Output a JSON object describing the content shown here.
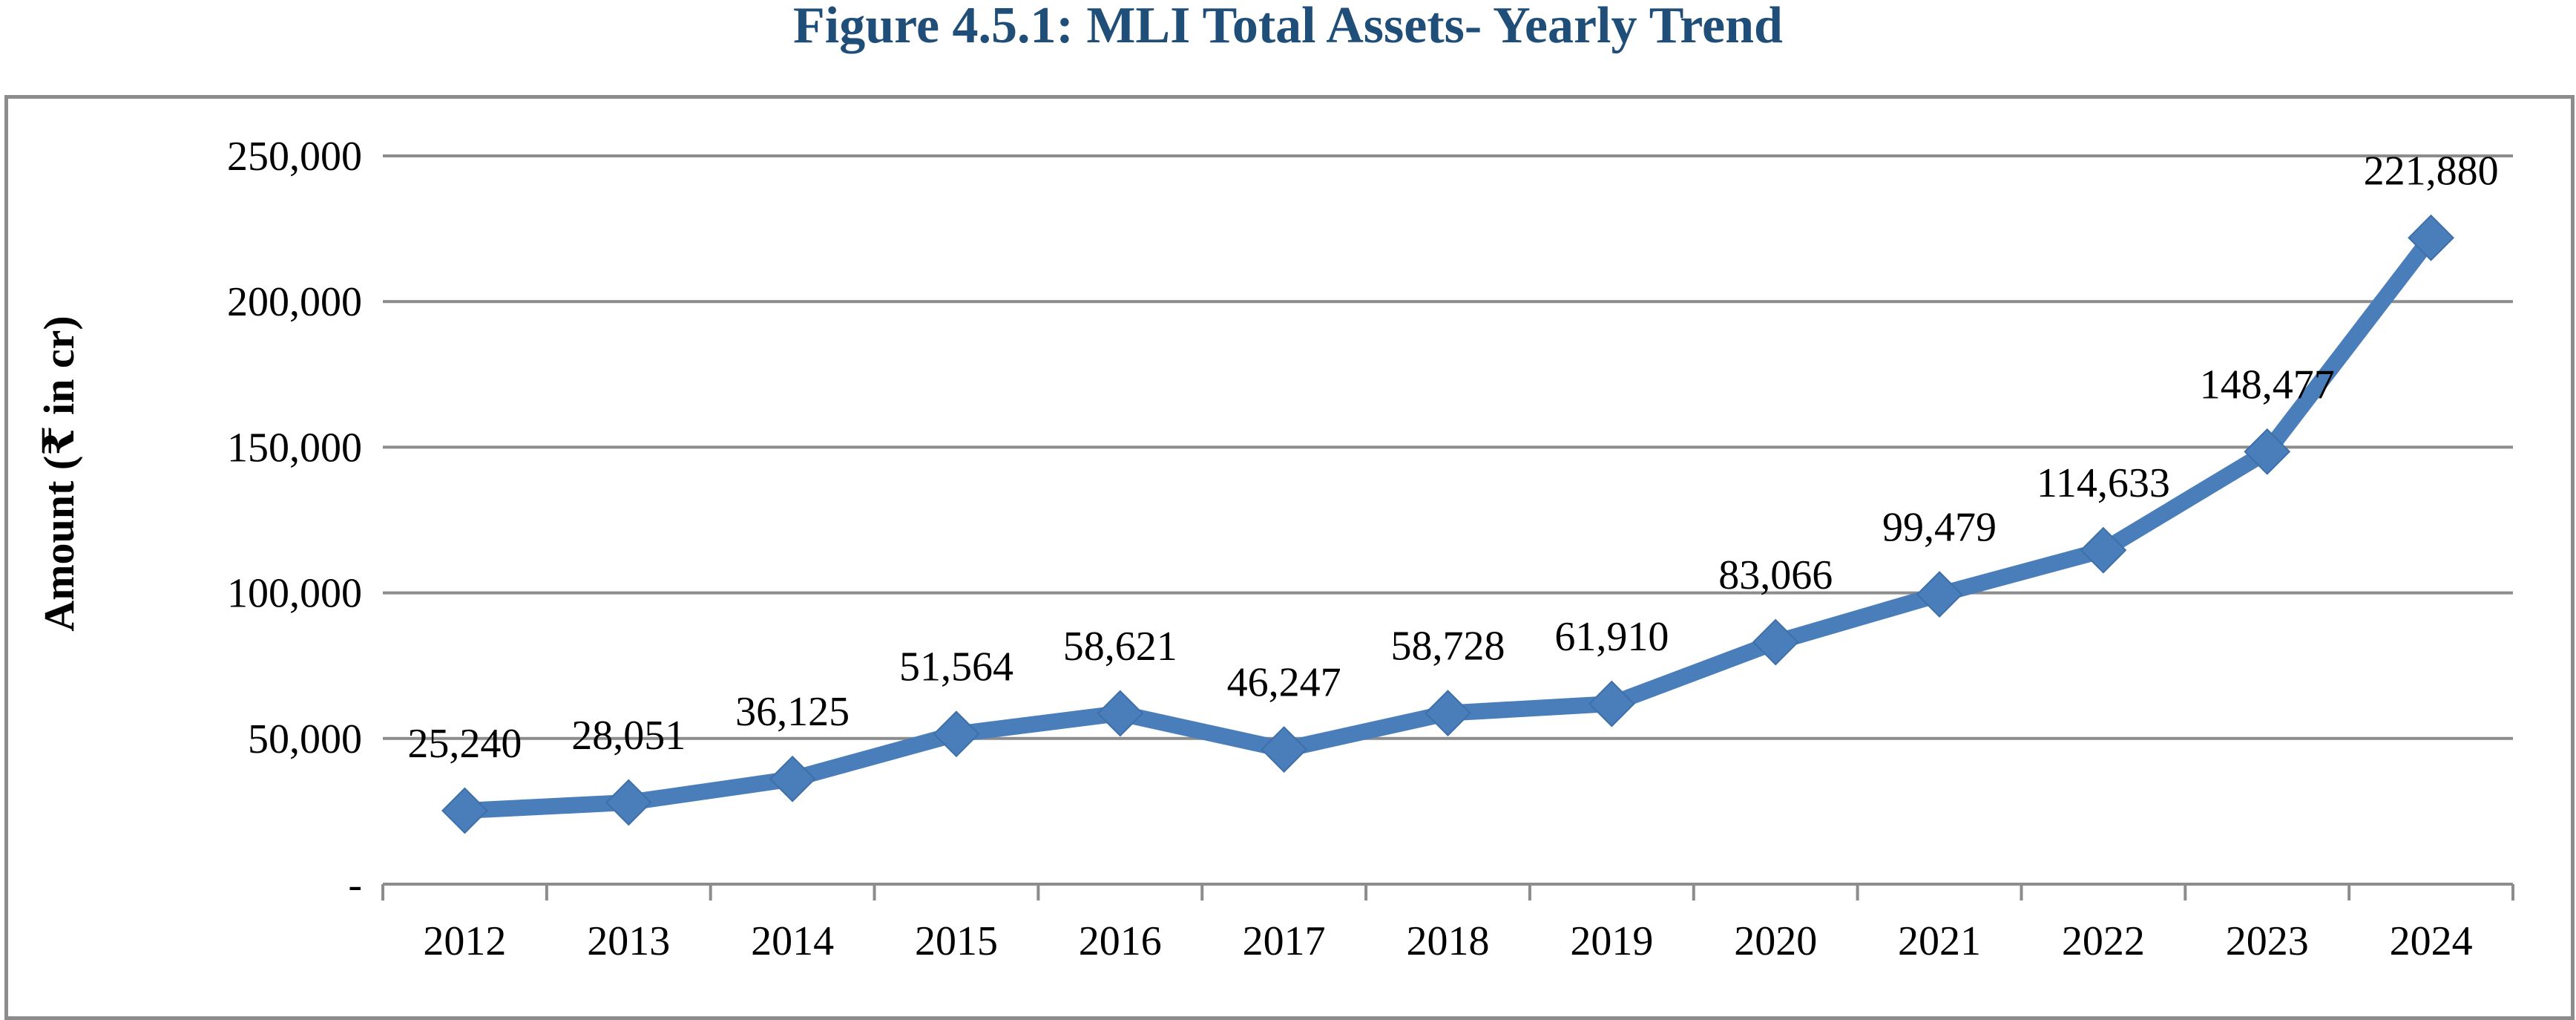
{
  "chart_data": {
    "type": "line",
    "title": "Figure 4.5.1: MLI Total Assets- Yearly Trend",
    "xlabel": "",
    "ylabel": "Amount (₹ in cr)",
    "categories": [
      "2012",
      "2013",
      "2014",
      "2015",
      "2016",
      "2017",
      "2018",
      "2019",
      "2020",
      "2021",
      "2022",
      "2023",
      "2024"
    ],
    "series": [
      {
        "values": [
          25240,
          28051,
          36125,
          51564,
          58621,
          46247,
          58728,
          61910,
          83066,
          99479,
          114633,
          148477,
          221880
        ],
        "data_labels": [
          "25,240",
          "28,051",
          "36,125",
          "51,564",
          "58,621",
          "46,247",
          "58,728",
          "61,910",
          "83,066",
          "99,479",
          "114,633",
          "148,477",
          "221,880"
        ]
      }
    ],
    "ylim": [
      0,
      250000
    ],
    "yticks": [
      0,
      50000,
      100000,
      150000,
      200000,
      250000
    ],
    "ytick_labels": [
      "-",
      "50,000",
      "100,000",
      "150,000",
      "200,000",
      "250,000"
    ],
    "grid": true,
    "legend": "none",
    "colors": {
      "line": "#4a7ebb",
      "marker": "#4a7ebb",
      "grid": "#8c8c8c",
      "title": "#1f4e79"
    }
  }
}
